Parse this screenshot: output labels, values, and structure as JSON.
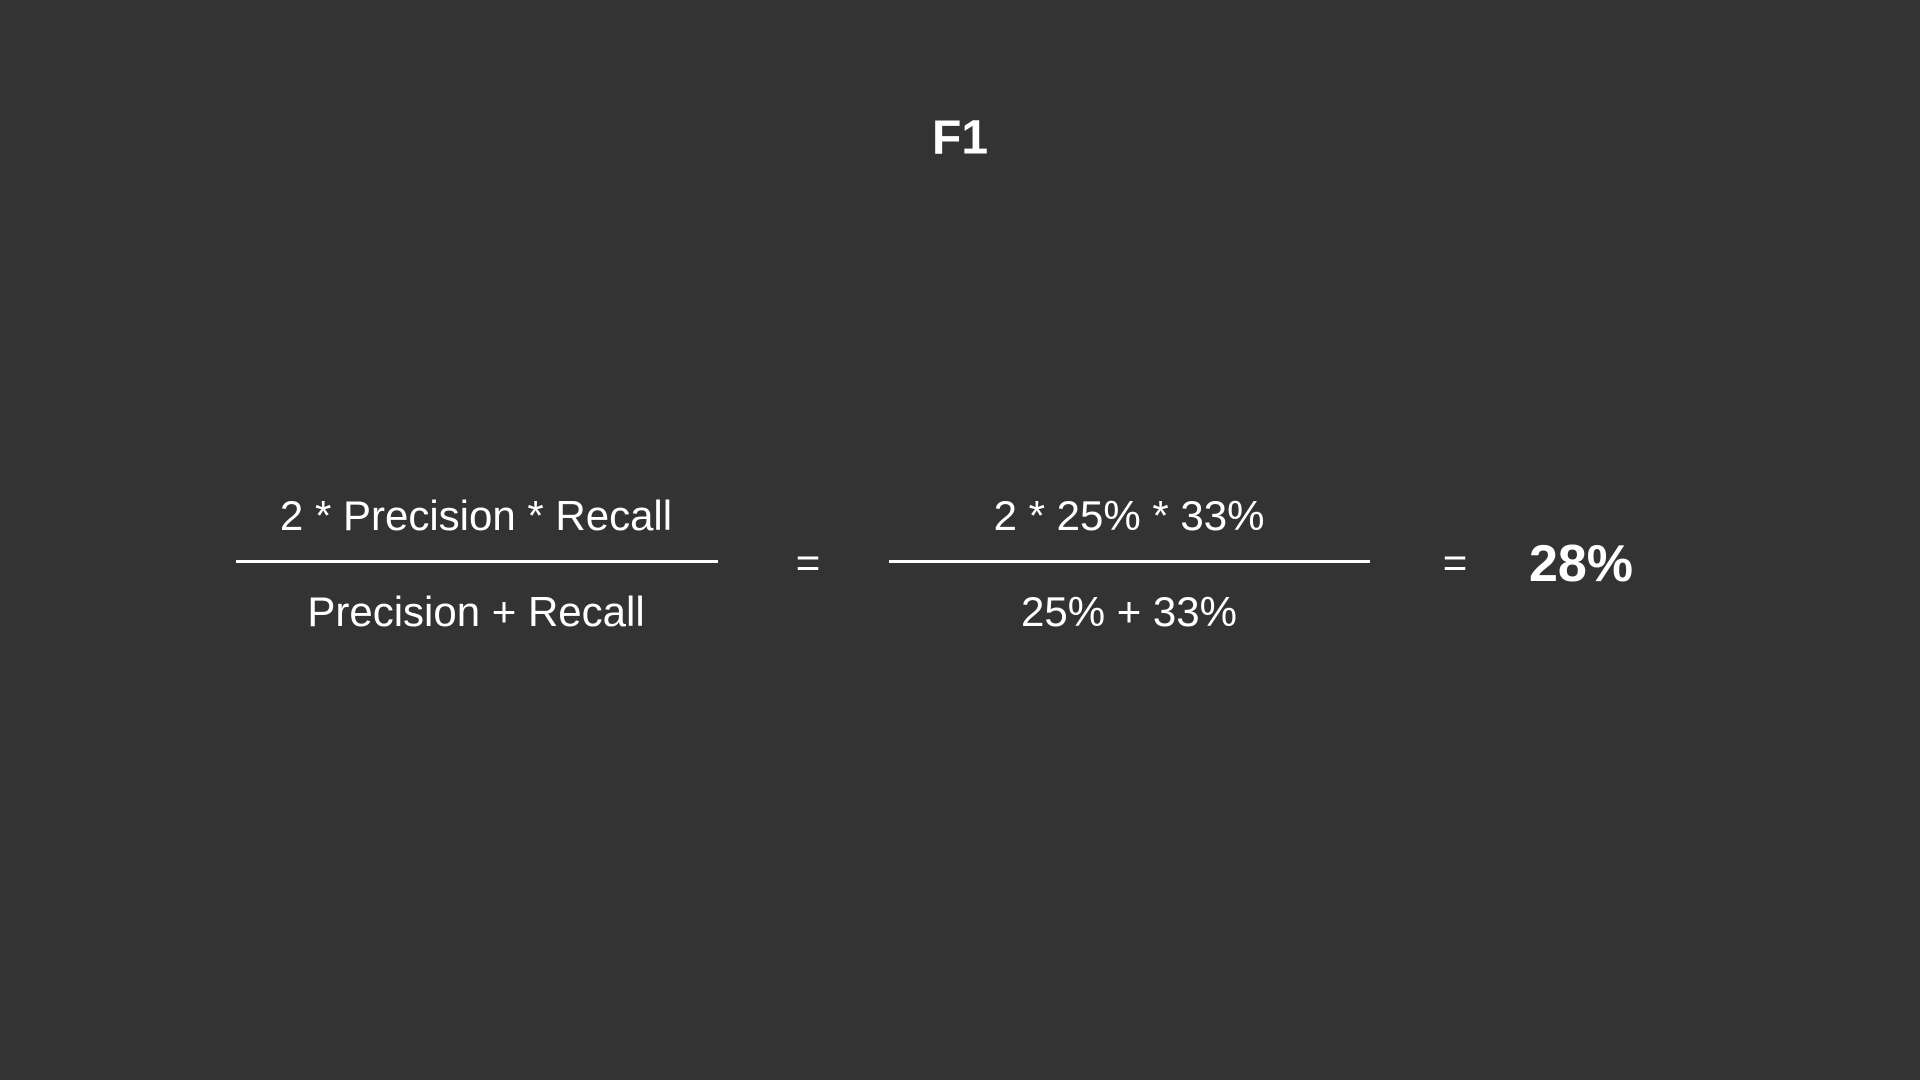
{
  "title": "F1",
  "formula": {
    "numerator": "2 * Precision * Recall",
    "denominator": "Precision + Recall"
  },
  "equals_1": "=",
  "substituted": {
    "numerator": "2 * 25% * 33%",
    "denominator": "25% + 33%"
  },
  "equals_2": "=",
  "result": "28%",
  "colors": {
    "background": "#333333",
    "text": "#ffffff"
  }
}
